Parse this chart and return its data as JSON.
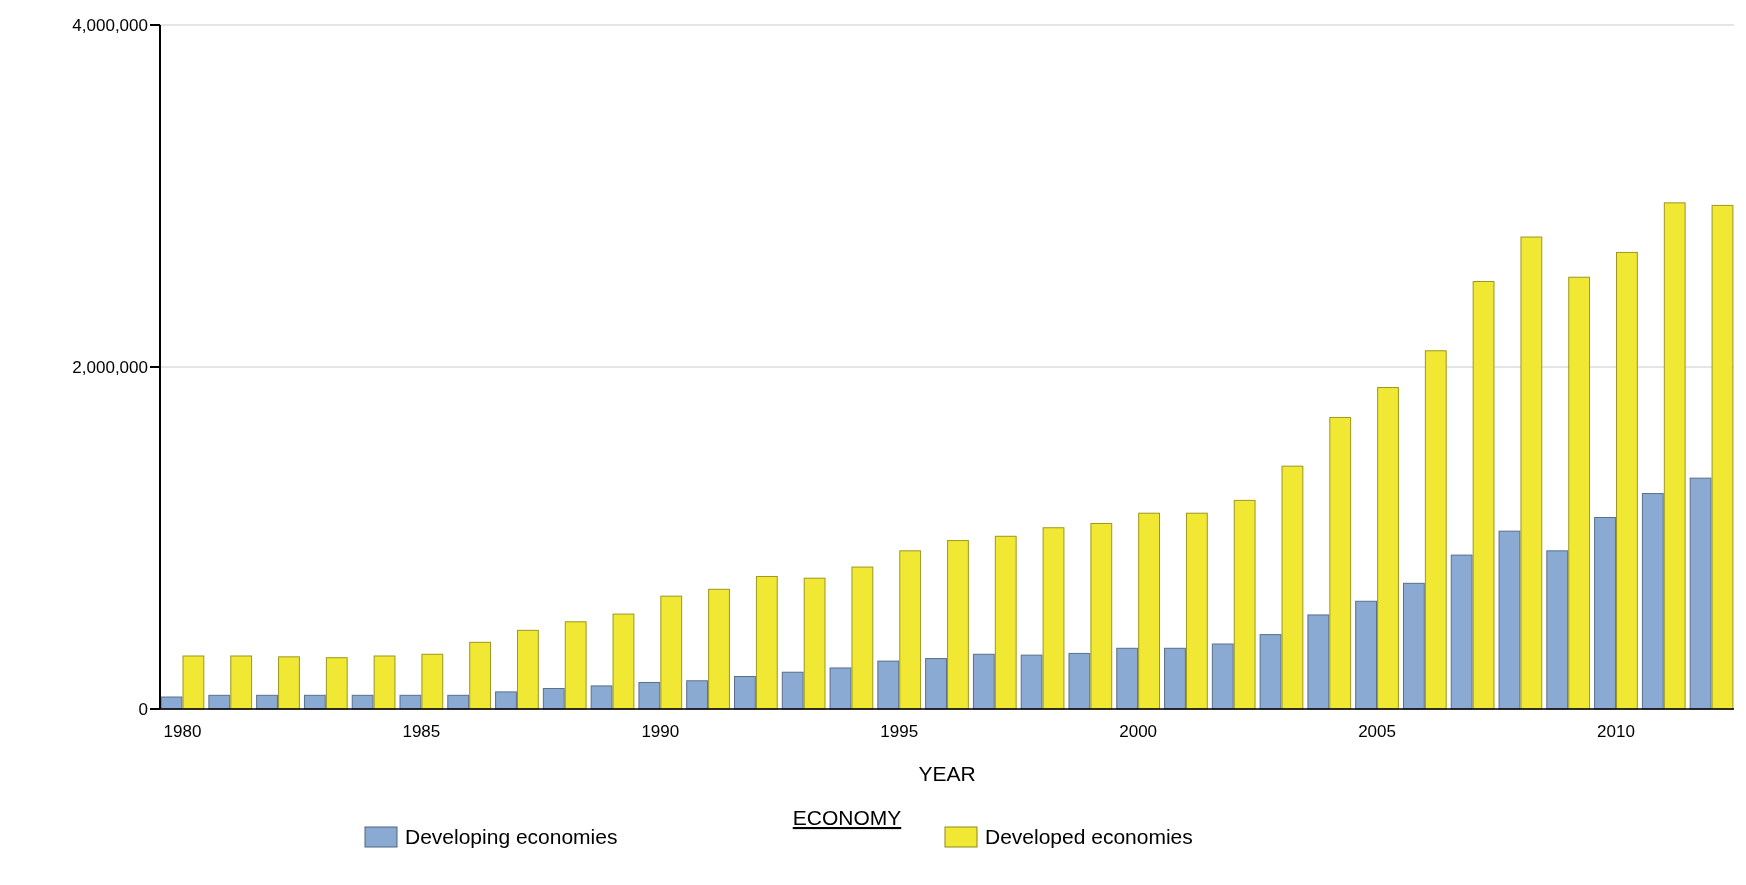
{
  "chart_data": {
    "type": "bar",
    "xlabel": "YEAR",
    "legend_title": "ECONOMY",
    "legend": "bottom",
    "grid": "y",
    "categories": [
      "1980",
      null,
      null,
      null,
      null,
      "1985",
      null,
      null,
      null,
      null,
      "1990",
      null,
      null,
      null,
      null,
      "1995",
      null,
      null,
      null,
      null,
      "2000",
      null,
      null,
      null,
      null,
      "2005",
      null,
      null,
      null,
      null,
      "2010",
      null,
      null
    ],
    "ylim": [
      0,
      4000000
    ],
    "yticks": [
      {
        "value": 0,
        "label": "0"
      },
      {
        "value": 2000000,
        "label": "2,000,000"
      },
      {
        "value": 4000000,
        "label": "4,000,000"
      }
    ],
    "series": [
      {
        "name": "Developing economies",
        "color": "#8aaad3",
        "values": [
          70000,
          80000,
          80000,
          80000,
          80000,
          80000,
          80000,
          100000,
          120000,
          135000,
          155000,
          165000,
          190000,
          215000,
          240000,
          280000,
          295000,
          320000,
          315000,
          325000,
          355000,
          355000,
          380000,
          435000,
          550000,
          630000,
          735000,
          900000,
          1040000,
          925000,
          1120000,
          1260000,
          1350000
        ]
      },
      {
        "name": "Developed economies",
        "color": "#f0e832",
        "values": [
          310000,
          310000,
          305000,
          300000,
          310000,
          320000,
          390000,
          460000,
          510000,
          555000,
          660000,
          700000,
          775000,
          765000,
          830000,
          925000,
          985000,
          1010000,
          1060000,
          1085000,
          1145000,
          1145000,
          1220000,
          1420000,
          1705000,
          1880000,
          2095000,
          2500000,
          2760000,
          2525000,
          2670000,
          2960000,
          2945000
        ]
      }
    ]
  }
}
